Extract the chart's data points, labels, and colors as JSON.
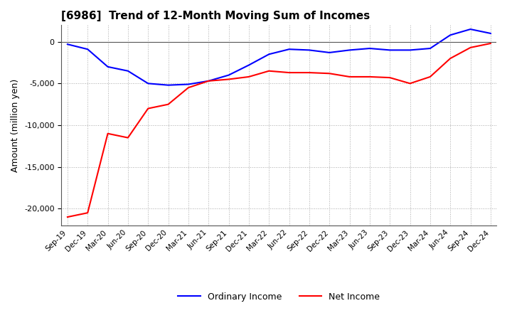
{
  "title": "[6986]  Trend of 12-Month Moving Sum of Incomes",
  "ylabel": "Amount (million yen)",
  "ylim": [
    -22000,
    2000
  ],
  "yticks": [
    0,
    -5000,
    -10000,
    -15000,
    -20000
  ],
  "legend_labels": [
    "Ordinary Income",
    "Net Income"
  ],
  "ordinary_income_color": "#0000ff",
  "net_income_color": "#ff0000",
  "x_labels": [
    "Sep-19",
    "Dec-19",
    "Mar-20",
    "Jun-20",
    "Sep-20",
    "Dec-20",
    "Mar-21",
    "Jun-21",
    "Sep-21",
    "Dec-21",
    "Mar-22",
    "Jun-22",
    "Sep-22",
    "Dec-22",
    "Mar-23",
    "Jun-23",
    "Sep-23",
    "Dec-23",
    "Mar-24",
    "Jun-24",
    "Sep-24",
    "Dec-24"
  ],
  "ordinary_income": [
    -300,
    -900,
    -3000,
    -3500,
    -5000,
    -5200,
    -5100,
    -4700,
    -4000,
    -2800,
    -1500,
    -900,
    -1000,
    -1300,
    -1000,
    -800,
    -1000,
    -1000,
    -800,
    800,
    1500,
    1000
  ],
  "net_income": [
    -21000,
    -20500,
    -11000,
    -11500,
    -8000,
    -7500,
    -5500,
    -4700,
    -4500,
    -4200,
    -3500,
    -3700,
    -3700,
    -3800,
    -4200,
    -4200,
    -4300,
    -5000,
    -4200,
    -2000,
    -700,
    -200
  ]
}
